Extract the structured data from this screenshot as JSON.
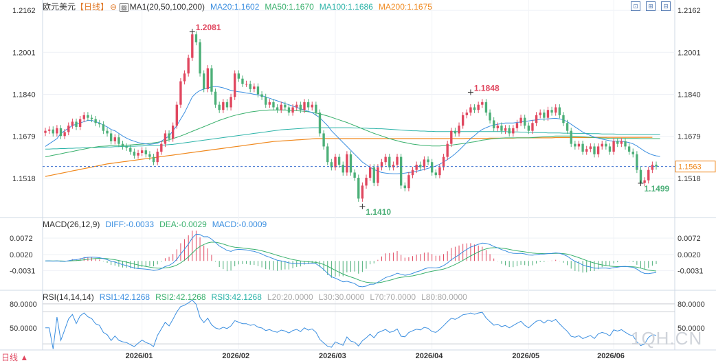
{
  "header": {
    "symbol": "欧元美元",
    "period": "【日线】",
    "indicator": "MA1(20,50,100,200)",
    "ma20": "MA20:1.1602",
    "ma50": "MA50:1.1670",
    "ma100": "MA100:1.1686",
    "ma200": "MA200:1.1675"
  },
  "macd_header": {
    "label": "MACD(26,12,9)",
    "diff": "DIFF:-0.0033",
    "dea": "DEA:-0.0029",
    "macd": "MACD:-0.0009"
  },
  "rsi_header": {
    "label": "RSI(14,14,14)",
    "rsi1": "RSI1:42.1268",
    "rsi2": "RSI2:42.1268",
    "rsi3": "RSI3:42.1268",
    "l20": "L20:20.0000",
    "l30": "L30:30.0000",
    "l70": "L70:70.0000",
    "l80": "L80:80.0000"
  },
  "footer": {
    "period_select": "日线 ▲",
    "watermark": "1QH.CN"
  },
  "colors": {
    "up": "#e0475f",
    "down": "#4caf78",
    "ma20": "#3a8ee0",
    "ma50": "#38b06c",
    "ma100": "#2bb3a8",
    "ma200": "#f0891e",
    "macd_diff": "#3a8ee0",
    "macd_dea": "#38b06c",
    "rsi": "#3a8ee0",
    "price_line": "#3a6fcf",
    "current_box": "#f0891e"
  },
  "chart_data": [
    {
      "type": "candlestick",
      "x_ticks": [
        "2026/01",
        "2026/02",
        "2026/03",
        "2026/04",
        "2026/05",
        "2026/06"
      ],
      "y_ticks": [
        "1.2162",
        "1.2001",
        "1.1840",
        "1.1679",
        "1.1518"
      ],
      "ylim": [
        1.137,
        1.2165
      ],
      "current_price": "1.1563",
      "annotations": {
        "high": "1.2081",
        "low": "1.1410",
        "high2": "1.1848",
        "low2": "1.1499"
      },
      "close": [
        1.17,
        1.1705,
        1.169,
        1.171,
        1.168,
        1.1695,
        1.172,
        1.1735,
        1.1715,
        1.1745,
        1.176,
        1.175,
        1.1745,
        1.173,
        1.1725,
        1.17,
        1.169,
        1.166,
        1.1675,
        1.165,
        1.164,
        1.1635,
        1.162,
        1.1605,
        1.1615,
        1.1625,
        1.161,
        1.16,
        1.158,
        1.162,
        1.165,
        1.169,
        1.167,
        1.172,
        1.18,
        1.189,
        1.192,
        1.198,
        1.207,
        1.204,
        1.192,
        1.186,
        1.194,
        1.185,
        1.18,
        1.178,
        1.181,
        1.179,
        1.183,
        1.192,
        1.19,
        1.188,
        1.188,
        1.186,
        1.187,
        1.184,
        1.183,
        1.18,
        1.181,
        1.179,
        1.178,
        1.18,
        1.179,
        1.177,
        1.179,
        1.18,
        1.178,
        1.181,
        1.179,
        1.18,
        1.177,
        1.169,
        1.164,
        1.158,
        1.156,
        1.16,
        1.157,
        1.154,
        1.161,
        1.154,
        1.152,
        1.144,
        1.149,
        1.152,
        1.156,
        1.15,
        1.156,
        1.158,
        1.16,
        1.156,
        1.157,
        1.16,
        1.149,
        1.148,
        1.153,
        1.155,
        1.157,
        1.156,
        1.159,
        1.158,
        1.154,
        1.153,
        1.156,
        1.16,
        1.165,
        1.17,
        1.169,
        1.172,
        1.176,
        1.177,
        1.179,
        1.178,
        1.18,
        1.181,
        1.177,
        1.174,
        1.171,
        1.172,
        1.17,
        1.171,
        1.169,
        1.171,
        1.173,
        1.175,
        1.172,
        1.17,
        1.173,
        1.176,
        1.177,
        1.175,
        1.178,
        1.177,
        1.179,
        1.176,
        1.173,
        1.17,
        1.165,
        1.164,
        1.165,
        1.162,
        1.163,
        1.164,
        1.161,
        1.164,
        1.165,
        1.164,
        1.162,
        1.166,
        1.165,
        1.166,
        1.164,
        1.162,
        1.161,
        1.155,
        1.15,
        1.151,
        1.155,
        1.157,
        1.1563
      ],
      "ma20": [
        1.164,
        1.165,
        1.166,
        1.167,
        1.169,
        1.17,
        1.171,
        1.172,
        1.1725,
        1.173,
        1.1735,
        1.174,
        1.174,
        1.1735,
        1.173,
        1.1722,
        1.1715,
        1.1705,
        1.17,
        1.169,
        1.168,
        1.1672,
        1.1665,
        1.166,
        1.1655,
        1.1652,
        1.165,
        1.1648,
        1.165,
        1.1652,
        1.166,
        1.167,
        1.168,
        1.17,
        1.172,
        1.1745,
        1.177,
        1.18,
        1.183,
        1.1845,
        1.1855,
        1.186,
        1.1865,
        1.1868,
        1.187,
        1.1868,
        1.1865,
        1.186,
        1.1855,
        1.1852,
        1.185,
        1.1848,
        1.1845,
        1.1843,
        1.184,
        1.1838,
        1.1835,
        1.183,
        1.1825,
        1.182,
        1.1815,
        1.181,
        1.1805,
        1.18,
        1.1795,
        1.179,
        1.1785,
        1.178,
        1.1775,
        1.177,
        1.176,
        1.175,
        1.1735,
        1.172,
        1.17,
        1.1685,
        1.167,
        1.1655,
        1.164,
        1.1625,
        1.161,
        1.1595,
        1.158,
        1.157,
        1.156,
        1.1552,
        1.1545,
        1.154,
        1.1538,
        1.1536,
        1.1535,
        1.1535,
        1.1536,
        1.1538,
        1.154,
        1.1542,
        1.1545,
        1.1548,
        1.1552,
        1.1556,
        1.156,
        1.1565,
        1.1572,
        1.158,
        1.159,
        1.16,
        1.1612,
        1.1625,
        1.164,
        1.1655,
        1.167,
        1.1682,
        1.1695,
        1.1705,
        1.1712,
        1.1718,
        1.1722,
        1.1725,
        1.1728,
        1.173,
        1.173,
        1.173,
        1.1732,
        1.1734,
        1.1736,
        1.1738,
        1.174,
        1.1742,
        1.1744,
        1.1745,
        1.1746,
        1.1747,
        1.1748,
        1.1746,
        1.1742,
        1.1735,
        1.1725,
        1.1715,
        1.1705,
        1.1695,
        1.1688,
        1.1682,
        1.1676,
        1.1672,
        1.1668,
        1.1665,
        1.1662,
        1.166,
        1.166,
        1.166,
        1.1658,
        1.1655,
        1.165,
        1.1642,
        1.1632,
        1.1622,
        1.1614,
        1.1608,
        1.1604,
        1.1602
      ],
      "ma50": [
        1.16,
        1.1603,
        1.1606,
        1.1609,
        1.1612,
        1.1615,
        1.1618,
        1.1621,
        1.1624,
        1.1627,
        1.163,
        1.1633,
        1.1636,
        1.1638,
        1.164,
        1.1641,
        1.1642,
        1.1643,
        1.1644,
        1.1645,
        1.1645,
        1.1645,
        1.1646,
        1.1647,
        1.1648,
        1.1649,
        1.165,
        1.1652,
        1.1654,
        1.1656,
        1.1659,
        1.1662,
        1.1666,
        1.167,
        1.1675,
        1.168,
        1.1686,
        1.1692,
        1.1698,
        1.1704,
        1.171,
        1.1716,
        1.1722,
        1.1728,
        1.1734,
        1.174,
        1.1745,
        1.175,
        1.1755,
        1.1759,
        1.1763,
        1.1766,
        1.1769,
        1.1772,
        1.1774,
        1.1776,
        1.1778,
        1.1779,
        1.178,
        1.178,
        1.178,
        1.178,
        1.178,
        1.1779,
        1.1778,
        1.1777,
        1.1776,
        1.1775,
        1.1773,
        1.1771,
        1.1768,
        1.1765,
        1.1761,
        1.1757,
        1.1752,
        1.1747,
        1.1742,
        1.1737,
        1.1732,
        1.1726,
        1.172,
        1.1714,
        1.1708,
        1.1702,
        1.1696,
        1.169,
        1.1685,
        1.168,
        1.1675,
        1.167,
        1.1666,
        1.1662,
        1.1658,
        1.1655,
        1.1652,
        1.1649,
        1.1647,
        1.1645,
        1.1644,
        1.1643,
        1.1642,
        1.1642,
        1.1642,
        1.1643,
        1.1644,
        1.1645,
        1.1647,
        1.1649,
        1.1651,
        1.1653,
        1.1656,
        1.1658,
        1.1661,
        1.1664,
        1.1666,
        1.1668,
        1.167,
        1.1671,
        1.1672,
        1.1673,
        1.1673,
        1.1673,
        1.1673,
        1.1673,
        1.1673,
        1.1673,
        1.1674,
        1.1675,
        1.1676,
        1.1677,
        1.1678,
        1.1679,
        1.168,
        1.168,
        1.168,
        1.168,
        1.168,
        1.1679,
        1.1678,
        1.1677,
        1.1676,
        1.1675,
        1.1674,
        1.1673,
        1.1672,
        1.1672,
        1.1671,
        1.1671,
        1.1671,
        1.1671,
        1.1671,
        1.1671,
        1.1671,
        1.1671,
        1.167,
        1.167,
        1.167,
        1.167,
        1.167,
        1.167
      ],
      "ma100": [
        1.163,
        1.163,
        1.1631,
        1.1631,
        1.1632,
        1.1632,
        1.1633,
        1.1633,
        1.1634,
        1.1634,
        1.1635,
        1.1635,
        1.1636,
        1.1636,
        1.1637,
        1.1637,
        1.1638,
        1.1638,
        1.1639,
        1.1639,
        1.164,
        1.164,
        1.1641,
        1.1641,
        1.1642,
        1.1642,
        1.1643,
        1.1643,
        1.1644,
        1.1644,
        1.1645,
        1.1646,
        1.1647,
        1.1648,
        1.165,
        1.1652,
        1.1654,
        1.1656,
        1.1658,
        1.166,
        1.1662,
        1.1664,
        1.1666,
        1.1668,
        1.167,
        1.1672,
        1.1674,
        1.1676,
        1.1678,
        1.168,
        1.1682,
        1.1684,
        1.1686,
        1.1688,
        1.169,
        1.1692,
        1.1694,
        1.1696,
        1.1698,
        1.17,
        1.1702,
        1.1704,
        1.1705,
        1.1706,
        1.1707,
        1.1708,
        1.1709,
        1.171,
        1.1711,
        1.1712,
        1.1712,
        1.1712,
        1.1712,
        1.1712,
        1.1712,
        1.1712,
        1.1712,
        1.1712,
        1.1712,
        1.1712,
        1.1711,
        1.1711,
        1.171,
        1.171,
        1.1709,
        1.1709,
        1.1708,
        1.1708,
        1.1707,
        1.1706,
        1.1705,
        1.1704,
        1.1703,
        1.1702,
        1.1701,
        1.17,
        1.17,
        1.1699,
        1.1699,
        1.1698,
        1.1698,
        1.1697,
        1.1697,
        1.1697,
        1.1697,
        1.1697,
        1.1697,
        1.1697,
        1.1697,
        1.1697,
        1.1697,
        1.1697,
        1.1697,
        1.1697,
        1.1697,
        1.1697,
        1.1697,
        1.1697,
        1.1697,
        1.1697,
        1.1696,
        1.1696,
        1.1696,
        1.1695,
        1.1695,
        1.1694,
        1.1694,
        1.1693,
        1.1693,
        1.1693,
        1.1692,
        1.1692,
        1.1692,
        1.1692,
        1.1691,
        1.1691,
        1.1691,
        1.169,
        1.169,
        1.169,
        1.169,
        1.1689,
        1.1689,
        1.1689,
        1.1688,
        1.1688,
        1.1688,
        1.1688,
        1.1687,
        1.1687,
        1.1687,
        1.1687,
        1.1687,
        1.1686,
        1.1686,
        1.1686,
        1.1686,
        1.1686,
        1.1686,
        1.1686
      ],
      "ma200": [
        1.1525,
        1.1528,
        1.1531,
        1.1534,
        1.1537,
        1.154,
        1.1543,
        1.1546,
        1.1549,
        1.1552,
        1.1555,
        1.1558,
        1.1561,
        1.1564,
        1.1567,
        1.157,
        1.1573,
        1.1575,
        1.1577,
        1.1579,
        1.1581,
        1.1583,
        1.1585,
        1.1587,
        1.1589,
        1.1591,
        1.1593,
        1.1595,
        1.1597,
        1.1599,
        1.1601,
        1.1603,
        1.1605,
        1.1607,
        1.1609,
        1.1611,
        1.1613,
        1.1615,
        1.1617,
        1.1619,
        1.1621,
        1.1623,
        1.1625,
        1.1627,
        1.1629,
        1.1631,
        1.1633,
        1.1635,
        1.1637,
        1.1639,
        1.1641,
        1.1643,
        1.1645,
        1.1647,
        1.1649,
        1.1651,
        1.1653,
        1.1655,
        1.1657,
        1.1659,
        1.166,
        1.1661,
        1.1662,
        1.1663,
        1.1664,
        1.1665,
        1.1666,
        1.1667,
        1.1668,
        1.1669,
        1.167,
        1.167,
        1.167,
        1.167,
        1.167,
        1.167,
        1.167,
        1.167,
        1.167,
        1.167,
        1.167,
        1.167,
        1.167,
        1.167,
        1.167,
        1.167,
        1.167,
        1.167,
        1.167,
        1.167,
        1.167,
        1.167,
        1.167,
        1.167,
        1.167,
        1.167,
        1.167,
        1.167,
        1.167,
        1.167,
        1.167,
        1.167,
        1.167,
        1.167,
        1.167,
        1.167,
        1.167,
        1.167,
        1.167,
        1.1671,
        1.1671,
        1.1671,
        1.1671,
        1.1671,
        1.1671,
        1.1672,
        1.1672,
        1.1672,
        1.1672,
        1.1672,
        1.1672,
        1.1672,
        1.1673,
        1.1673,
        1.1673,
        1.1673,
        1.1673,
        1.1673,
        1.1673,
        1.1673,
        1.1673,
        1.1673,
        1.1674,
        1.1674,
        1.1674,
        1.1674,
        1.1674,
        1.1674,
        1.1674,
        1.1674,
        1.1674,
        1.1674,
        1.1675,
        1.1675,
        1.1675,
        1.1675,
        1.1675,
        1.1675,
        1.1675,
        1.1675,
        1.1675,
        1.1675,
        1.1675,
        1.1675,
        1.1675,
        1.1675,
        1.1675,
        1.1675
      ]
    },
    {
      "type": "line+bar",
      "name": "MACD(26,12,9)",
      "y_ticks": [
        "0.0072",
        "0.0020",
        "-0.0031"
      ],
      "ylim": [
        -0.006,
        0.01
      ]
    },
    {
      "type": "line",
      "name": "RSI(14,14,14)",
      "y_ticks": [
        "80.0000",
        "50.0000"
      ],
      "ylim": [
        25,
        85
      ]
    }
  ]
}
